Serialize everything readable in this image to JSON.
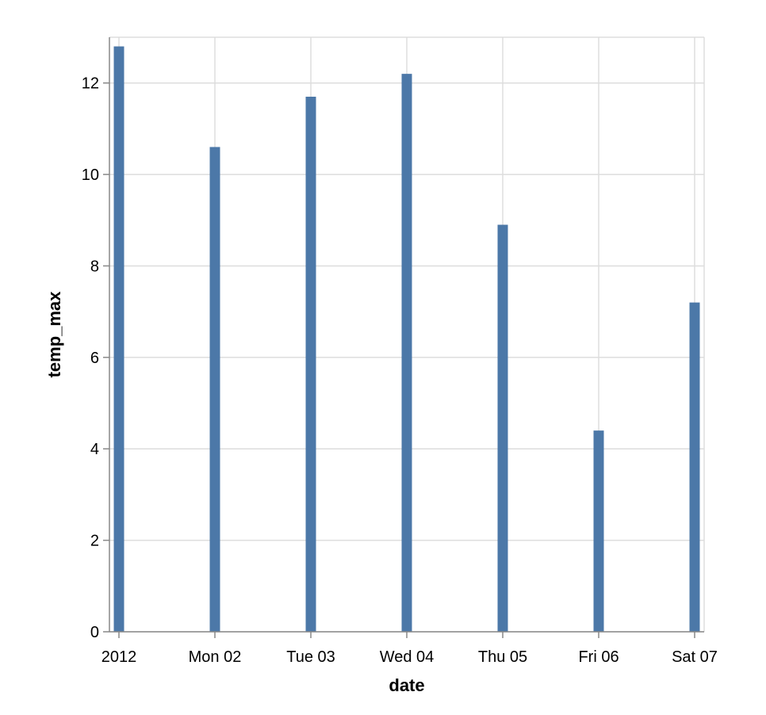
{
  "chart_data": {
    "type": "bar",
    "title": "",
    "xlabel": "date",
    "ylabel": "temp_max",
    "categories": [
      "2012",
      "Mon 02",
      "Tue 03",
      "Wed 04",
      "Thu 05",
      "Fri 06",
      "Sat 07"
    ],
    "x": [
      "2012-01-01",
      "2012-01-02",
      "2012-01-03",
      "2012-01-04",
      "2012-01-05",
      "2012-01-06",
      "2012-01-07"
    ],
    "values": [
      12.8,
      10.6,
      11.7,
      12.2,
      8.9,
      4.4,
      7.2
    ],
    "ylim": [
      0,
      13
    ],
    "yticks": [
      "0",
      "2",
      "4",
      "6",
      "8",
      "10",
      "12"
    ],
    "grid": true,
    "bar_color": "#4c78a8"
  }
}
